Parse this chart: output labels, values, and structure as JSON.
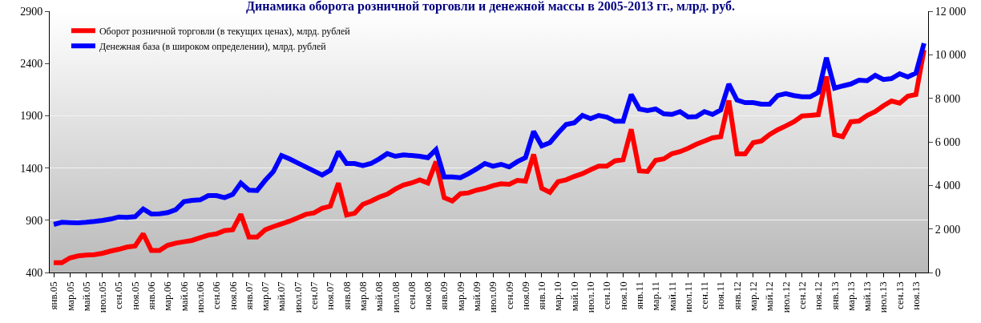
{
  "chart_data": {
    "type": "line",
    "title": "Динамика оборота розничной торговли и денежной массы в 2005-2013 гг., млрд. руб.",
    "categories": [
      "янв.05",
      null,
      "мар.05",
      null,
      "май.05",
      null,
      "июл.05",
      null,
      "сен.05",
      null,
      "ноя.05",
      null,
      "янв.06",
      null,
      "мар.06",
      null,
      "май.06",
      null,
      "июл.06",
      null,
      "сен.06",
      null,
      "ноя.06",
      null,
      "янв.07",
      null,
      "мар.07",
      null,
      "май.07",
      null,
      "июл.07",
      null,
      "сен.07",
      null,
      "ноя.07",
      null,
      "янв.08",
      null,
      "мар.08",
      null,
      "май.08",
      null,
      "июл.08",
      null,
      "сен.08",
      null,
      "ноя.08",
      null,
      "янв.09",
      null,
      "мар.09",
      null,
      "май.09",
      null,
      "июл.09",
      null,
      "сен.09",
      null,
      "ноя.09",
      null,
      "янв.10",
      null,
      "мар.10",
      null,
      "май.10",
      null,
      "июл.10",
      null,
      "сен.10",
      null,
      "ноя.10",
      null,
      "янв.11",
      null,
      "мар.11",
      null,
      "май.11",
      null,
      "июл.11",
      null,
      "сен.11",
      null,
      "ноя.11",
      null,
      "янв.12",
      null,
      "мар.12",
      null,
      "май.12",
      null,
      "июл.12",
      null,
      "сен.12",
      null,
      "ноя.12",
      null,
      "янв.13",
      null,
      "мар.13",
      null,
      "май.13",
      null,
      "июл.13",
      null,
      "сен.13",
      null,
      "ноя.13",
      null
    ],
    "series": [
      {
        "name": "Оборот розничной торговли (в текущих ценах), млрд. рублей",
        "color": "#ff0000",
        "values": [
          494,
          494,
          540,
          559,
          566,
          571,
          584,
          605,
          622,
          643,
          653,
          770,
          610,
          610,
          661,
          681,
          694,
          707,
          732,
          758,
          770,
          801,
          809,
          957,
          740,
          740,
          809,
          839,
          865,
          891,
          924,
          957,
          970,
          1014,
          1034,
          1255,
          950,
          967,
          1052,
          1083,
          1121,
          1149,
          1198,
          1238,
          1257,
          1287,
          1257,
          1461,
          1116,
          1085,
          1154,
          1162,
          1188,
          1205,
          1231,
          1249,
          1244,
          1282,
          1274,
          1530,
          1205,
          1167,
          1269,
          1287,
          1320,
          1346,
          1384,
          1418,
          1418,
          1468,
          1479,
          1770,
          1372,
          1367,
          1474,
          1487,
          1537,
          1556,
          1589,
          1627,
          1658,
          1688,
          1700,
          2045,
          1535,
          1535,
          1642,
          1658,
          1719,
          1765,
          1802,
          1842,
          1897,
          1903,
          1910,
          2275,
          1719,
          1700,
          1842,
          1849,
          1903,
          1940,
          1995,
          2041,
          2020,
          2087,
          2103,
          2530
        ]
      },
      {
        "name": "Денежная база (в широком определении), млрд. рублей",
        "color": "#0000ff",
        "axis": "y2",
        "values": [
          2209,
          2307,
          2295,
          2282,
          2307,
          2344,
          2393,
          2455,
          2552,
          2528,
          2565,
          2920,
          2687,
          2700,
          2748,
          2884,
          3252,
          3313,
          3338,
          3534,
          3534,
          3436,
          3583,
          4110,
          3780,
          3768,
          4233,
          4638,
          5374,
          5215,
          5031,
          4847,
          4662,
          4478,
          4699,
          5546,
          5006,
          5006,
          4908,
          5006,
          5215,
          5461,
          5337,
          5399,
          5374,
          5337,
          5276,
          5645,
          4392,
          4392,
          4355,
          4540,
          4760,
          5006,
          4883,
          4969,
          4847,
          5092,
          5276,
          6479,
          5816,
          5963,
          6405,
          6802,
          6876,
          7215,
          7068,
          7215,
          7141,
          6950,
          6950,
          8172,
          7509,
          7436,
          7509,
          7288,
          7260,
          7391,
          7141,
          7155,
          7391,
          7260,
          7465,
          8658,
          7921,
          7804,
          7804,
          7730,
          7730,
          8128,
          8216,
          8128,
          8069,
          8069,
          8275,
          9865,
          8466,
          8569,
          8658,
          8834,
          8805,
          9055,
          8864,
          8908,
          9129,
          8982,
          9158,
          10528
        ]
      }
    ],
    "ylim": [
      400,
      2900
    ],
    "yticks": [
      400,
      900,
      1400,
      1900,
      2400,
      2900
    ],
    "y2lim": [
      0,
      12000
    ],
    "y2ticks": [
      0,
      {
        "value": 2000,
        "label": "2 000"
      },
      {
        "value": 4000,
        "label": "4 000"
      },
      {
        "value": 6000,
        "label": "6 000"
      },
      {
        "value": 8000,
        "label": "8 000"
      },
      {
        "value": 10000,
        "label": "10 000"
      },
      {
        "value": 12000,
        "label": "12 000"
      }
    ],
    "grid": "y",
    "legend": "top left",
    "line_style": "solid"
  }
}
